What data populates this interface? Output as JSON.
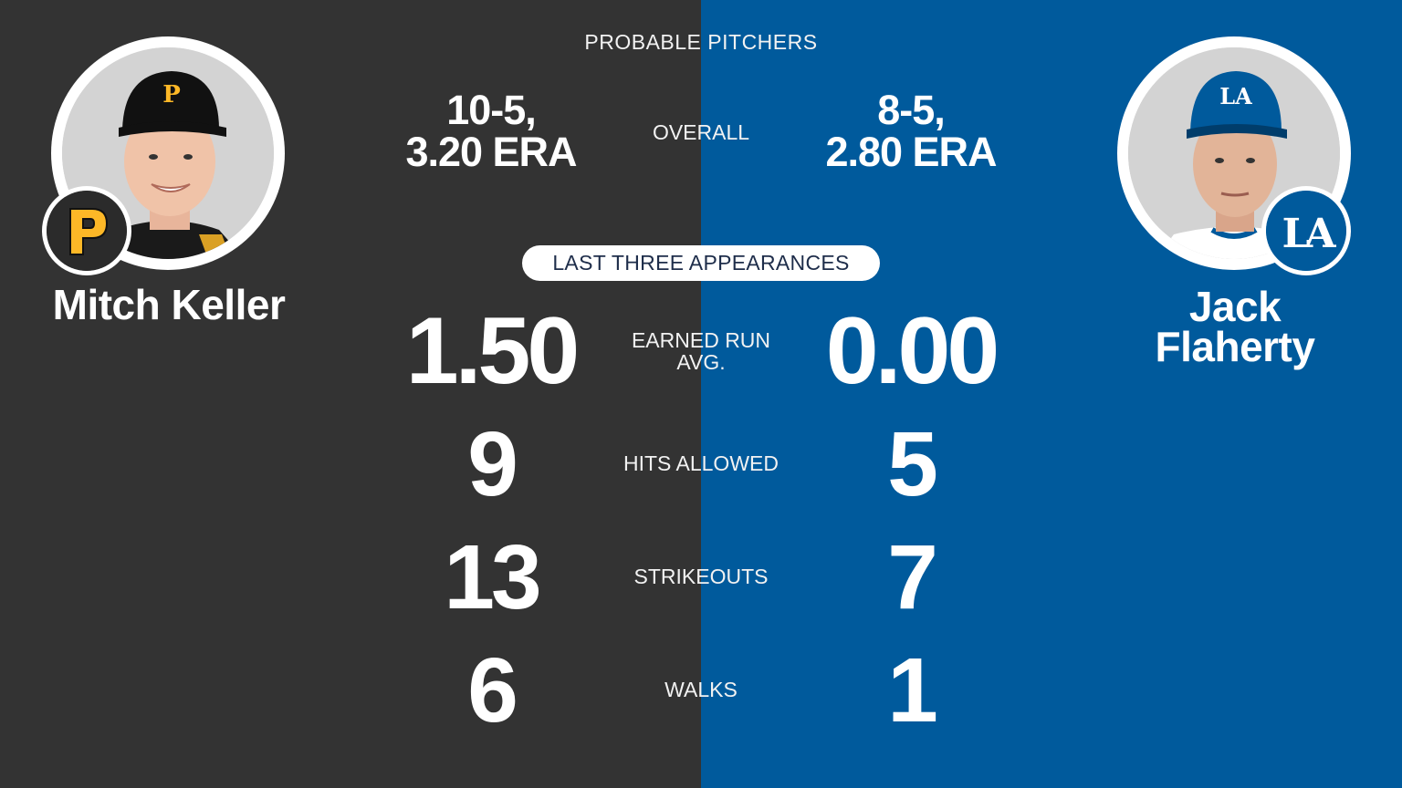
{
  "header": {
    "title": "PROBABLE PITCHERS"
  },
  "players": {
    "away": {
      "name": "Mitch Keller",
      "team_icon": "pirates-logo-icon",
      "team_color": "#333333",
      "accent_color": "#fdb827",
      "overall": {
        "record": "10-5,",
        "era": "3.20 ERA"
      }
    },
    "home": {
      "name_line1": "Jack",
      "name_line2": "Flaherty",
      "team_icon": "dodgers-logo-icon",
      "team_color": "#005a9c",
      "overall": {
        "record": "8-5,",
        "era": "2.80 ERA"
      }
    }
  },
  "overall_label": "OVERALL",
  "section_title": "LAST THREE APPEARANCES",
  "stats": [
    {
      "label_line1": "EARNED RUN",
      "label_line2": "AVG.",
      "away": "1.50",
      "home": "0.00"
    },
    {
      "label": "HITS ALLOWED",
      "away": "9",
      "home": "5"
    },
    {
      "label": "STRIKEOUTS",
      "away": "13",
      "home": "7"
    },
    {
      "label": "WALKS",
      "away": "6",
      "home": "1"
    }
  ]
}
